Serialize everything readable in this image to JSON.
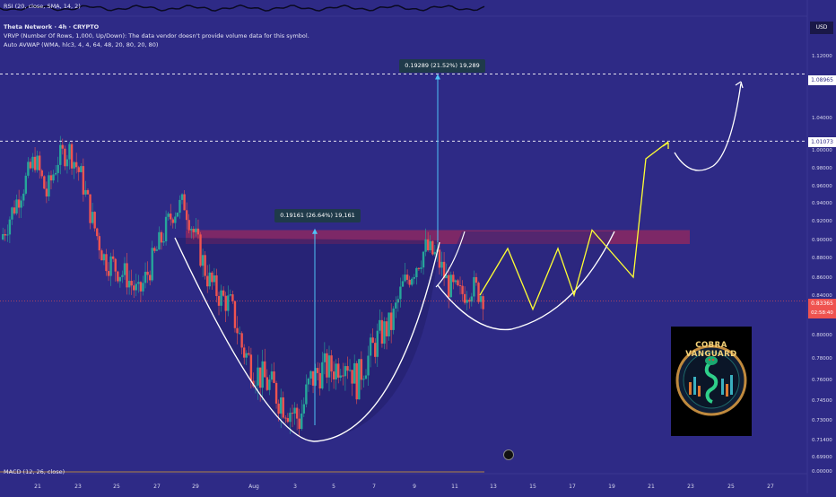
{
  "header": {
    "rsi_label": "RSI (20, close, SMA, 14, 2)",
    "symbol_title": "Theta Network · 4h · CRYPTO",
    "vrvp_label": "VRVP (Number Of Rows, 1,000, Up/Down): The data vendor doesn't provide volume data for this symbol.",
    "avwap_label": "Auto AVWAP (WMA, hlc3, 4, 4, 64, 48, 20, 80, 20, 80)",
    "currency": "USD"
  },
  "price_axis": {
    "ticks": [
      "1.12000",
      "1.08000",
      "1.04000",
      "1.00000",
      "0.98000",
      "0.96000",
      "0.94000",
      "0.92000",
      "0.90000",
      "0.88000",
      "0.86000",
      "0.84000",
      "0.82000",
      "0.80000",
      "0.78000",
      "0.76000",
      "0.74500",
      "0.73000",
      "0.71400",
      "0.69900",
      "0.00000"
    ],
    "level_high": "1.08965",
    "level_mid": "1.01073",
    "current_price": "0.83365",
    "countdown": "02:58:40"
  },
  "time_axis": {
    "ticks": [
      "21",
      "23",
      "25",
      "27",
      "29",
      "Aug",
      "3",
      "5",
      "7",
      "9",
      "11",
      "13",
      "15",
      "17",
      "19",
      "21",
      "23",
      "25",
      "27"
    ]
  },
  "measurements": {
    "left": "0.19161 (26.64%) 19,161",
    "right": "0.19289 (21.52%) 19,289"
  },
  "indicator_bottom": "MACD (12, 26, close)",
  "logo_text": "COBRA VANGUARD",
  "colors": {
    "background": "#2e2a86",
    "bull": "#26a69a",
    "bear": "#ef5350",
    "resistance_zone": "#a0285a",
    "projection": "#ffff33",
    "measure": "#4fc3f7"
  },
  "chart_data": {
    "type": "candlestick",
    "ylim": [
      0.69,
      1.13
    ],
    "x": [
      "21",
      "23",
      "25",
      "27",
      "29",
      "Aug",
      "3",
      "5",
      "7",
      "9",
      "11",
      "13",
      "15",
      "17",
      "19",
      "21",
      "23",
      "25",
      "27"
    ],
    "resistance_zone": [
      0.895,
      0.91
    ],
    "levels": [
      1.08965,
      1.01073
    ],
    "current_price": 0.83365,
    "measure_moves": [
      {
        "from": 0.72,
        "to": 0.91161,
        "change": "0.19161 (26.64%) 19,161"
      },
      {
        "from": 0.9,
        "to": 1.08965,
        "change": "0.19289 (21.52%) 19,289"
      }
    ],
    "candles_close_path": [
      0.9,
      0.93,
      0.96,
      0.99,
      0.95,
      0.99,
      1.0,
      0.97,
      0.92,
      0.88,
      0.87,
      0.86,
      0.84,
      0.87,
      0.9,
      0.93,
      0.94,
      0.9,
      0.86,
      0.84,
      0.83,
      0.79,
      0.77,
      0.76,
      0.75,
      0.74,
      0.73,
      0.76,
      0.77,
      0.77,
      0.78,
      0.76,
      0.78,
      0.8,
      0.81,
      0.85,
      0.87,
      0.89,
      0.88,
      0.85,
      0.84,
      0.85,
      0.84
    ],
    "projection_path": [
      0.84,
      0.89,
      0.825,
      0.89,
      0.84,
      0.91,
      0.86,
      0.99,
      1.01
    ],
    "target_path": [
      0.99,
      1.01,
      0.985,
      1.02,
      1.08965
    ]
  }
}
